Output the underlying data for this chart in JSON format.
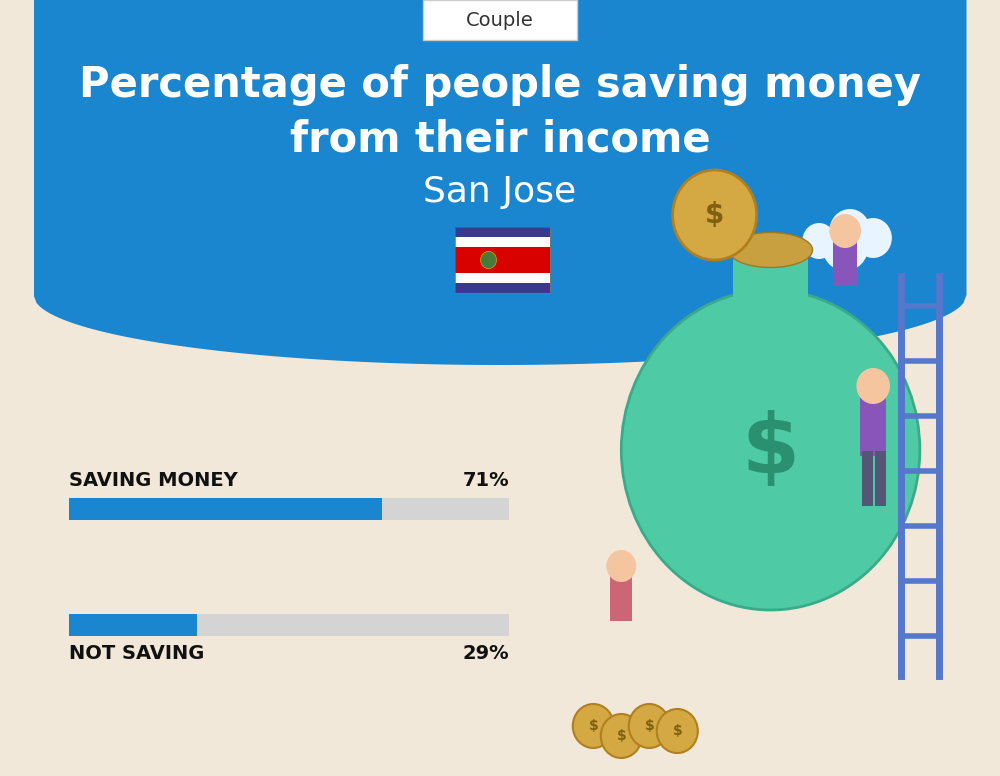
{
  "title_line1": "Percentage of people saving money",
  "title_line2": "from their income",
  "subtitle": "San Jose",
  "tab_label": "Couple",
  "saving_label": "SAVING MONEY",
  "saving_value": 71,
  "saving_text": "71%",
  "not_saving_label": "NOT SAVING",
  "not_saving_value": 29,
  "not_saving_text": "29%",
  "bg_color": "#f2e8da",
  "blue_bg": "#1a86d0",
  "bar_blue": "#1a86d0",
  "bar_gray": "#d4d4d4",
  "title_color": "#ffffff",
  "subtitle_color": "#ffffff",
  "tab_bg": "#ffffff",
  "tab_text": "#333333",
  "label_color": "#111111",
  "value_color": "#111111",
  "flag_blue": "#3a3a8c",
  "flag_white": "#ffffff",
  "flag_red": "#d90000"
}
